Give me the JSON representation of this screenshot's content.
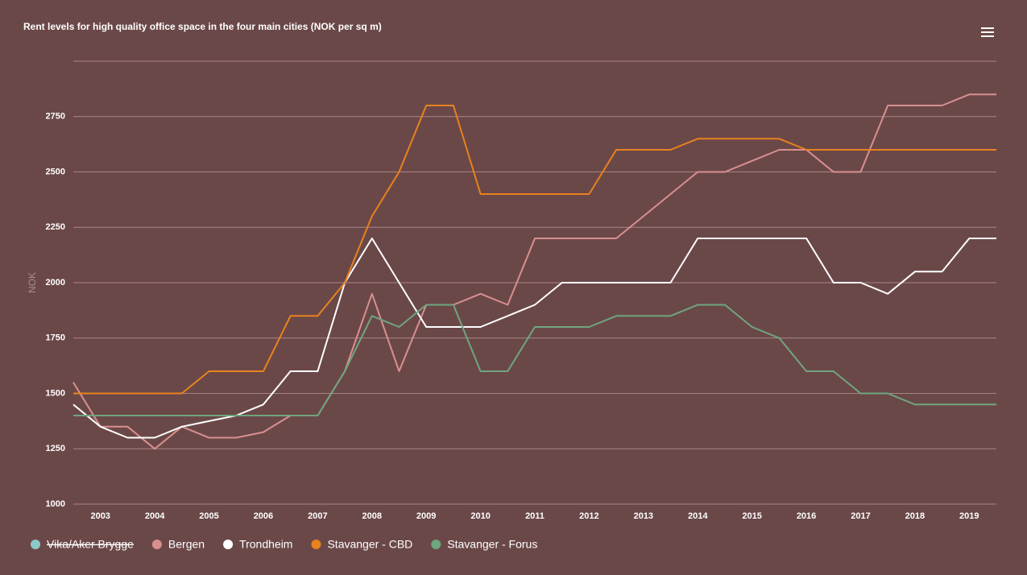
{
  "chart_data": {
    "type": "line",
    "title": "Rent levels for high quality office space in the four main cities (NOK per sq m)",
    "y_label": "NOK",
    "x": [
      2002.5,
      2003,
      2003.5,
      2004,
      2004.5,
      2005,
      2005.5,
      2006,
      2006.5,
      2007,
      2007.5,
      2008,
      2008.5,
      2009,
      2009.5,
      2010,
      2010.5,
      2011,
      2011.5,
      2012,
      2012.5,
      2013,
      2013.5,
      2014,
      2014.5,
      2015,
      2015.5,
      2016,
      2016.5,
      2017,
      2017.5,
      2018,
      2018.5,
      2019,
      2019.5
    ],
    "xlim": [
      2002.5,
      2019.5
    ],
    "xticks": [
      2003,
      2004,
      2005,
      2006,
      2007,
      2008,
      2009,
      2010,
      2011,
      2012,
      2013,
      2014,
      2015,
      2016,
      2017,
      2018,
      2019
    ],
    "ylim": [
      1000,
      3000
    ],
    "yticks": [
      1000,
      1250,
      1500,
      1750,
      2000,
      2250,
      2500,
      2750
    ],
    "grid": true,
    "legend": "bottom-left",
    "series": [
      {
        "name": "Vika/Aker Brygge",
        "color": "#8ccaca",
        "visible": false,
        "values": [
          null,
          null,
          null,
          null,
          null,
          null,
          null,
          null,
          null,
          null,
          null,
          null,
          null,
          null,
          null,
          null,
          null,
          null,
          null,
          null,
          null,
          null,
          null,
          null,
          null,
          null,
          null,
          null,
          null,
          null,
          null,
          null,
          null,
          null,
          null
        ]
      },
      {
        "name": "Bergen",
        "color": "#d98f8f",
        "visible": true,
        "values": [
          1550,
          1350,
          1350,
          1250,
          1350,
          1300,
          1300,
          1325,
          1400,
          1400,
          1600,
          1950,
          1600,
          1900,
          1900,
          1950,
          1900,
          2200,
          2200,
          2200,
          2200,
          2300,
          2400,
          2500,
          2500,
          2550,
          2600,
          2600,
          2500,
          2500,
          2800,
          2800,
          2800,
          2850,
          2850
        ]
      },
      {
        "name": "Trondheim",
        "color": "#ffffff",
        "visible": true,
        "values": [
          1450,
          1350,
          1300,
          1300,
          1350,
          1375,
          1400,
          1450,
          1600,
          1600,
          2000,
          2200,
          2000,
          1800,
          1800,
          1800,
          1850,
          1900,
          2000,
          2000,
          2000,
          2000,
          2000,
          2200,
          2200,
          2200,
          2200,
          2200,
          2000,
          2000,
          1950,
          2050,
          2050,
          2200,
          2200
        ]
      },
      {
        "name": "Stavanger - CBD",
        "color": "#e8821e",
        "visible": true,
        "values": [
          1500,
          1500,
          1500,
          1500,
          1500,
          1600,
          1600,
          1600,
          1850,
          1850,
          2000,
          2300,
          2500,
          2800,
          2800,
          2400,
          2400,
          2400,
          2400,
          2400,
          2600,
          2600,
          2600,
          2650,
          2650,
          2650,
          2650,
          2600,
          2600,
          2600,
          2600,
          2600,
          2600,
          2600,
          2600
        ]
      },
      {
        "name": "Stavanger - Forus",
        "color": "#6fa57f",
        "visible": true,
        "values": [
          1400,
          1400,
          1400,
          1400,
          1400,
          1400,
          1400,
          1400,
          1400,
          1400,
          1600,
          1850,
          1800,
          1900,
          1900,
          1600,
          1600,
          1800,
          1800,
          1800,
          1850,
          1850,
          1850,
          1900,
          1900,
          1800,
          1750,
          1600,
          1600,
          1500,
          1500,
          1450,
          1450,
          1450,
          1450
        ]
      }
    ]
  }
}
